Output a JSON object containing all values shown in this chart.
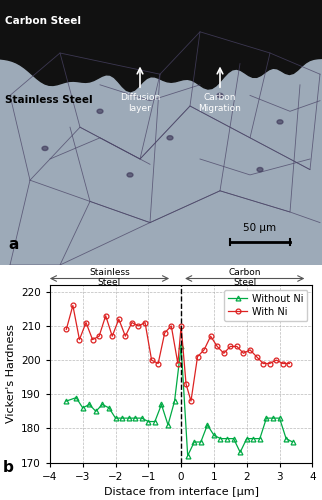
{
  "without_ni_x": [
    -3.5,
    -3.2,
    -3.0,
    -2.8,
    -2.6,
    -2.4,
    -2.2,
    -2.0,
    -1.8,
    -1.6,
    -1.4,
    -1.2,
    -1.0,
    -0.8,
    -0.6,
    -0.4,
    -0.2,
    0.0,
    0.2,
    0.4,
    0.6,
    0.8,
    1.0,
    1.2,
    1.4,
    1.6,
    1.8,
    2.0,
    2.2,
    2.4,
    2.6,
    2.8,
    3.0,
    3.2,
    3.4
  ],
  "without_ni_y": [
    188,
    189,
    186,
    187,
    185,
    187,
    186,
    183,
    183,
    183,
    183,
    183,
    182,
    182,
    187,
    181,
    188,
    204,
    172,
    176,
    176,
    181,
    178,
    177,
    177,
    177,
    173,
    177,
    177,
    177,
    183,
    183,
    183,
    177,
    176
  ],
  "with_ni_x": [
    -3.5,
    -3.3,
    -3.1,
    -2.9,
    -2.7,
    -2.5,
    -2.3,
    -2.1,
    -1.9,
    -1.7,
    -1.5,
    -1.3,
    -1.1,
    -0.9,
    -0.7,
    -0.5,
    -0.3,
    -0.1,
    0.0,
    0.15,
    0.3,
    0.5,
    0.7,
    0.9,
    1.1,
    1.3,
    1.5,
    1.7,
    1.9,
    2.1,
    2.3,
    2.5,
    2.7,
    2.9,
    3.1,
    3.3
  ],
  "with_ni_y": [
    209,
    216,
    206,
    211,
    206,
    207,
    213,
    207,
    212,
    207,
    211,
    210,
    211,
    200,
    199,
    208,
    210,
    199,
    210,
    193,
    188,
    201,
    203,
    207,
    204,
    202,
    204,
    204,
    202,
    203,
    201,
    199,
    199,
    200,
    199,
    199
  ],
  "xlabel": "Distace from interface [μm]",
  "ylabel": "Vicker's Hardness",
  "xlim": [
    -4,
    4
  ],
  "ylim": [
    170,
    222
  ],
  "yticks": [
    170,
    180,
    190,
    200,
    210,
    220
  ],
  "xticks": [
    -4,
    -3,
    -2,
    -1,
    0,
    1,
    2,
    3,
    4
  ],
  "label_without": "Without Ni",
  "label_with": "With Ni",
  "color_without": "#00aa44",
  "color_with": "#dd2222",
  "background_color": "#ffffff",
  "panel_label_a": "a",
  "panel_label_b": "b",
  "img_bg_color": "#a8b4c0",
  "img_top_color": "#1a1a1a",
  "img_interface_color": "#2a2a2a"
}
